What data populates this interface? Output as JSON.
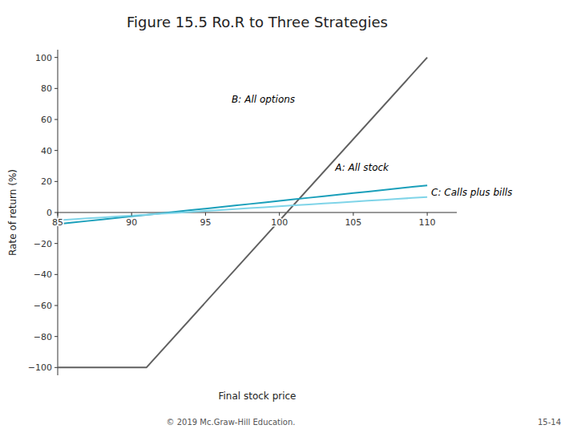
{
  "chart_data": {
    "type": "line",
    "title": "Figure 15.5 Ro.R to Three Strategies",
    "x_label": "Final stock price",
    "y_label": "Rate of return (%)",
    "xlim": [
      85,
      112
    ],
    "ylim": [
      -105,
      105
    ],
    "xticks": [
      85,
      90,
      95,
      100,
      105,
      110
    ],
    "yticks": [
      {
        "value": -100,
        "label": "−100"
      },
      {
        "value": -80,
        "label": "−80"
      },
      {
        "value": -60,
        "label": "−60"
      },
      {
        "value": -40,
        "label": "−40"
      },
      {
        "value": -20,
        "label": "−20"
      },
      0,
      20,
      40,
      60,
      80,
      100
    ],
    "grid": false,
    "series": [
      {
        "color": "#606060",
        "x": [
          85,
          91,
          110
        ],
        "values": [
          -100,
          -100,
          100
        ]
      },
      {
        "color": "#1a9fba",
        "x": [
          85,
          86,
          87,
          88,
          89,
          90,
          91,
          92,
          93,
          94,
          95,
          96,
          97,
          98,
          99,
          100,
          101,
          102,
          103,
          104,
          105,
          106,
          107,
          108,
          109,
          110
        ],
        "values": [
          -7.5,
          -6.5,
          -5.5,
          -4.5,
          -3.5,
          -2.5,
          -1.5,
          -0.5,
          0.5,
          1.5,
          2.5,
          3.5,
          4.5,
          5.5,
          6.5,
          7.5,
          8.5,
          9.5,
          10.5,
          11.5,
          12.5,
          13.5,
          14.5,
          15.5,
          16.5,
          17.5
        ]
      },
      {
        "color": "#7fd4e8",
        "x": [
          85,
          86,
          87,
          88,
          89,
          90,
          91,
          92,
          93,
          94,
          95,
          96,
          97,
          98,
          99,
          100,
          101,
          102,
          103,
          104,
          105,
          106,
          107,
          108,
          109,
          110
        ],
        "values": [
          -5,
          -4.4,
          -3.8,
          -3.2,
          -2.6,
          -2.0,
          -1.4,
          -0.8,
          -0.2,
          0.4,
          1.0,
          1.6,
          2.2,
          2.8,
          3.4,
          4.0,
          4.6,
          5.2,
          5.8,
          6.4,
          7.0,
          7.6,
          8.2,
          8.8,
          9.4,
          10.0
        ]
      }
    ],
    "annotations": [
      {
        "text": "A: All stock",
        "x": 103.5,
        "y": 26
      },
      {
        "text": "B: All options",
        "x": 96.5,
        "y": 70
      },
      {
        "text": "C: Calls plus bills",
        "x": 110,
        "y": 10
      }
    ],
    "footer": [
      "© 2019 Mc.Graw-Hill Education.",
      "15-14"
    ]
  }
}
